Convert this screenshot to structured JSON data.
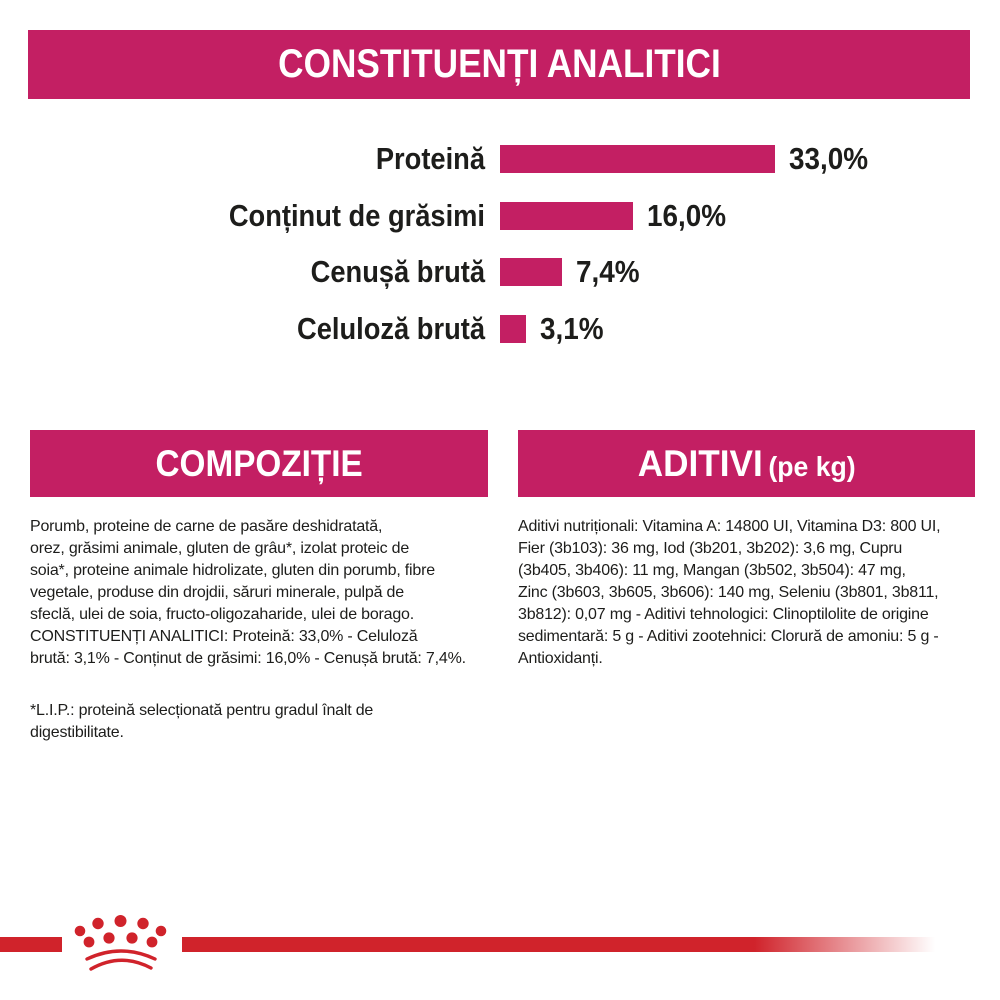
{
  "header": {
    "title": "CONSTITUENȚI ANALITICI"
  },
  "chart_data": {
    "type": "bar",
    "orientation": "horizontal",
    "title": "CONSTITUENȚI ANALITICI",
    "categories": [
      "Proteină",
      "Conținut de grăsimi",
      "Cenușă brută",
      "Celuloză brută"
    ],
    "values": [
      33.0,
      16.0,
      7.4,
      3.1
    ],
    "value_labels": [
      "33,0%",
      "16,0%",
      "7,4%",
      "3,1%"
    ],
    "unit": "percent",
    "xlim": [
      0,
      33
    ],
    "bar_color": "#C31F63",
    "grid": false,
    "legend": false
  },
  "sections": {
    "composition": {
      "title": "COMPOZIȚIE",
      "body": "Porumb, proteine de carne de pasăre deshidratată,\norez, grăsimi animale, gluten de grâu*, izolat proteic de\nsoia*, proteine animale hidrolizate, gluten din porumb, fibre\nvegetale, produse din drojdii, săruri minerale, pulpă de\nsfeclă, ulei de soia, fructo-oligozaharide, ulei de borago.\nCONSTITUENȚI ANALITICI: Proteină: 33,0% - Celuloză\nbrută: 3,1% - Conținut de grăsimi: 16,0% - Cenușă brută: 7,4%.",
      "footnote": "*L.I.P.: proteină selecționată pentru gradul înalt de\ndigestibilitate."
    },
    "additives": {
      "title": "ADITIVI",
      "title_suffix": "(pe kg)",
      "body": "Aditivi nutriționali: Vitamina A: 14800 UI, Vitamina D3: 800 UI,\nFier (3b103): 36 mg, Iod (3b201, 3b202): 3,6 mg, Cupru\n(3b405, 3b406): 11 mg, Mangan (3b502, 3b504): 47 mg,\nZinc (3b603, 3b605, 3b606): 140 mg, Seleniu (3b801, 3b811,\n3b812): 0,07 mg - Aditivi tehnologici: Clinoptilolite de origine\nsedimentară: 5 g - Aditivi zootehnici: Clorură de amoniu: 5 g -\nAntioxidanți."
    }
  },
  "footer": {
    "logo": "royal-canin-crown"
  },
  "colors": {
    "magenta": "#C31F63",
    "red": "#D0232B",
    "text": "#1D1D1B",
    "background": "#FFFFFF"
  }
}
